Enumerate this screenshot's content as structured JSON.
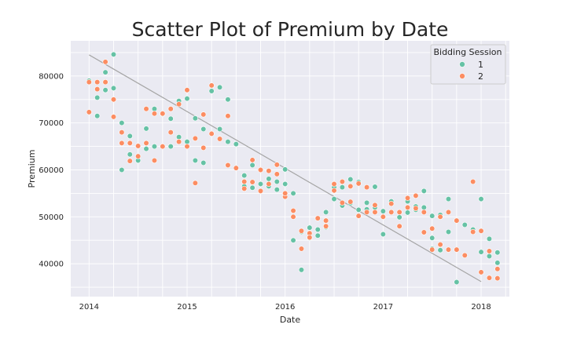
{
  "chart_data": {
    "type": "scatter",
    "title": "Scatter Plot of Premium by Date",
    "xlabel": "Date",
    "ylabel": "Premium",
    "x_ticks": [
      "2014",
      "2015",
      "2016",
      "2017",
      "2018"
    ],
    "y_ticks": [
      "40000",
      "50000",
      "60000",
      "70000",
      "80000"
    ],
    "xlim": [
      "2013-10-24",
      "2018-04-15"
    ],
    "ylim": [
      33000,
      87500
    ],
    "grid": true,
    "legend": {
      "title": "Bidding Session",
      "position": "top-right"
    },
    "colors": {
      "1": "#66c2a5",
      "2": "#fc8d62",
      "trend": "#a5a5a5",
      "background": "#eaeaf2",
      "grid": "#ffffff"
    },
    "series": [
      {
        "name": "1",
        "points": [
          [
            "2014-01-01",
            79000
          ],
          [
            "2014-02-01",
            71500
          ],
          [
            "2014-02-01",
            75400
          ],
          [
            "2014-03-01",
            80800
          ],
          [
            "2014-03-01",
            77000
          ],
          [
            "2014-04-01",
            84600
          ],
          [
            "2014-04-01",
            77400
          ],
          [
            "2014-05-01",
            60000
          ],
          [
            "2014-05-01",
            70000
          ],
          [
            "2014-06-01",
            67200
          ],
          [
            "2014-06-01",
            63300
          ],
          [
            "2014-07-01",
            62000
          ],
          [
            "2014-08-01",
            68800
          ],
          [
            "2014-08-01",
            64500
          ],
          [
            "2014-09-01",
            73000
          ],
          [
            "2014-09-01",
            65000
          ],
          [
            "2014-10-01",
            71900
          ],
          [
            "2014-11-01",
            70900
          ],
          [
            "2014-11-01",
            65000
          ],
          [
            "2014-12-01",
            74700
          ],
          [
            "2014-12-01",
            67000
          ],
          [
            "2015-01-01",
            75200
          ],
          [
            "2015-01-01",
            66000
          ],
          [
            "2015-02-01",
            71000
          ],
          [
            "2015-02-01",
            62000
          ],
          [
            "2015-03-01",
            61500
          ],
          [
            "2015-03-01",
            68700
          ],
          [
            "2015-04-01",
            76800
          ],
          [
            "2015-05-01",
            77600
          ],
          [
            "2015-05-01",
            68700
          ],
          [
            "2015-06-01",
            75000
          ],
          [
            "2015-06-01",
            66000
          ],
          [
            "2015-07-01",
            65500
          ],
          [
            "2015-08-01",
            58800
          ],
          [
            "2015-08-01",
            56500
          ],
          [
            "2015-09-01",
            61000
          ],
          [
            "2015-09-01",
            56200
          ],
          [
            "2015-10-01",
            57000
          ],
          [
            "2015-11-01",
            58100
          ],
          [
            "2015-11-01",
            56500
          ],
          [
            "2015-12-01",
            55800
          ],
          [
            "2015-12-01",
            57500
          ],
          [
            "2016-01-01",
            57000
          ],
          [
            "2016-01-01",
            60100
          ],
          [
            "2016-02-01",
            45000
          ],
          [
            "2016-02-01",
            55000
          ],
          [
            "2016-03-01",
            38700
          ],
          [
            "2016-03-01",
            46800
          ],
          [
            "2016-04-01",
            45500
          ],
          [
            "2016-04-01",
            47700
          ],
          [
            "2016-05-01",
            46000
          ],
          [
            "2016-05-01",
            47300
          ],
          [
            "2016-06-01",
            51000
          ],
          [
            "2016-06-01",
            47800
          ],
          [
            "2016-07-01",
            53800
          ],
          [
            "2016-07-01",
            56300
          ],
          [
            "2016-08-01",
            56300
          ],
          [
            "2016-08-01",
            52400
          ],
          [
            "2016-09-01",
            52900
          ],
          [
            "2016-09-01",
            58000
          ],
          [
            "2016-10-01",
            51500
          ],
          [
            "2016-10-01",
            57400
          ],
          [
            "2016-11-01",
            53000
          ],
          [
            "2016-11-01",
            51600
          ],
          [
            "2016-12-01",
            56400
          ],
          [
            "2016-12-01",
            52000
          ],
          [
            "2017-01-01",
            46300
          ],
          [
            "2017-01-01",
            51200
          ],
          [
            "2017-02-01",
            53300
          ],
          [
            "2017-03-01",
            49900
          ],
          [
            "2017-04-01",
            50900
          ],
          [
            "2017-04-01",
            53300
          ],
          [
            "2017-05-01",
            52200
          ],
          [
            "2017-05-01",
            51500
          ],
          [
            "2017-06-01",
            55500
          ],
          [
            "2017-06-01",
            52000
          ],
          [
            "2017-07-01",
            50200
          ],
          [
            "2017-07-01",
            43200
          ],
          [
            "2017-07-01",
            45500
          ],
          [
            "2017-08-01",
            42900
          ],
          [
            "2017-08-01",
            50400
          ],
          [
            "2017-09-01",
            53800
          ],
          [
            "2017-09-01",
            46800
          ],
          [
            "2017-10-01",
            36100
          ],
          [
            "2017-11-01",
            48300
          ],
          [
            "2017-12-01",
            47300
          ],
          [
            "2018-01-01",
            42500
          ],
          [
            "2018-01-01",
            53800
          ],
          [
            "2018-02-01",
            45300
          ],
          [
            "2018-02-01",
            41600
          ],
          [
            "2018-03-01",
            40200
          ],
          [
            "2018-03-01",
            42400
          ]
        ]
      },
      {
        "name": "2",
        "points": [
          [
            "2014-01-01",
            72300
          ],
          [
            "2014-01-01",
            78700
          ],
          [
            "2014-02-01",
            78700
          ],
          [
            "2014-02-01",
            77200
          ],
          [
            "2014-03-01",
            83000
          ],
          [
            "2014-03-01",
            78700
          ],
          [
            "2014-04-01",
            75000
          ],
          [
            "2014-04-01",
            71300
          ],
          [
            "2014-05-01",
            65700
          ],
          [
            "2014-05-01",
            68000
          ],
          [
            "2014-06-01",
            65700
          ],
          [
            "2014-06-01",
            61900
          ],
          [
            "2014-07-01",
            65100
          ],
          [
            "2014-07-01",
            62900
          ],
          [
            "2014-08-01",
            73000
          ],
          [
            "2014-08-01",
            65700
          ],
          [
            "2014-09-01",
            72000
          ],
          [
            "2014-09-01",
            62000
          ],
          [
            "2014-10-01",
            72000
          ],
          [
            "2014-10-01",
            65000
          ],
          [
            "2014-11-01",
            73000
          ],
          [
            "2014-11-01",
            68000
          ],
          [
            "2014-12-01",
            74000
          ],
          [
            "2014-12-01",
            66000
          ],
          [
            "2015-01-01",
            77000
          ],
          [
            "2015-01-01",
            65000
          ],
          [
            "2015-02-01",
            57200
          ],
          [
            "2015-02-01",
            66700
          ],
          [
            "2015-03-01",
            71800
          ],
          [
            "2015-03-01",
            64700
          ],
          [
            "2015-04-01",
            78000
          ],
          [
            "2015-04-01",
            67700
          ],
          [
            "2015-05-01",
            66600
          ],
          [
            "2015-06-01",
            71500
          ],
          [
            "2015-06-01",
            61000
          ],
          [
            "2015-07-01",
            60400
          ],
          [
            "2015-08-01",
            56000
          ],
          [
            "2015-08-01",
            57500
          ],
          [
            "2015-09-01",
            62100
          ],
          [
            "2015-09-01",
            57400
          ],
          [
            "2015-10-01",
            60000
          ],
          [
            "2015-10-01",
            55500
          ],
          [
            "2015-11-01",
            59800
          ],
          [
            "2015-11-01",
            57000
          ],
          [
            "2015-12-01",
            59100
          ],
          [
            "2015-12-01",
            61100
          ],
          [
            "2016-01-01",
            54300
          ],
          [
            "2016-01-01",
            55000
          ],
          [
            "2016-02-01",
            50000
          ],
          [
            "2016-02-01",
            51300
          ],
          [
            "2016-03-01",
            43200
          ],
          [
            "2016-03-01",
            47000
          ],
          [
            "2016-04-01",
            46500
          ],
          [
            "2016-04-01",
            45600
          ],
          [
            "2016-05-01",
            49700
          ],
          [
            "2016-06-01",
            49200
          ],
          [
            "2016-06-01",
            48000
          ],
          [
            "2016-07-01",
            55600
          ],
          [
            "2016-07-01",
            57000
          ],
          [
            "2016-08-01",
            57500
          ],
          [
            "2016-08-01",
            53000
          ],
          [
            "2016-09-01",
            56500
          ],
          [
            "2016-09-01",
            53200
          ],
          [
            "2016-10-01",
            50200
          ],
          [
            "2016-10-01",
            57100
          ],
          [
            "2016-11-01",
            51000
          ],
          [
            "2016-11-01",
            56300
          ],
          [
            "2016-12-01",
            51000
          ],
          [
            "2016-12-01",
            52500
          ],
          [
            "2017-01-01",
            50000
          ],
          [
            "2017-02-01",
            51000
          ],
          [
            "2017-02-01",
            52800
          ],
          [
            "2017-03-01",
            51000
          ],
          [
            "2017-03-01",
            48000
          ],
          [
            "2017-04-01",
            52000
          ],
          [
            "2017-04-01",
            54000
          ],
          [
            "2017-05-01",
            54500
          ],
          [
            "2017-05-01",
            51800
          ],
          [
            "2017-06-01",
            51000
          ],
          [
            "2017-06-01",
            46700
          ],
          [
            "2017-07-01",
            47500
          ],
          [
            "2017-07-01",
            43000
          ],
          [
            "2017-08-01",
            50000
          ],
          [
            "2017-08-01",
            44100
          ],
          [
            "2017-09-01",
            51000
          ],
          [
            "2017-09-01",
            43000
          ],
          [
            "2017-10-01",
            49200
          ],
          [
            "2017-10-01",
            43000
          ],
          [
            "2017-11-01",
            41800
          ],
          [
            "2017-12-01",
            57500
          ],
          [
            "2017-12-01",
            46800
          ],
          [
            "2018-01-01",
            47000
          ],
          [
            "2018-01-01",
            38200
          ],
          [
            "2018-02-01",
            42700
          ],
          [
            "2018-02-01",
            37000
          ],
          [
            "2018-03-01",
            38900
          ],
          [
            "2018-03-01",
            36900
          ]
        ]
      }
    ],
    "trend_line": {
      "from": [
        "2014-01-01",
        84500
      ],
      "to": [
        "2018-01-01",
        36200
      ]
    }
  }
}
